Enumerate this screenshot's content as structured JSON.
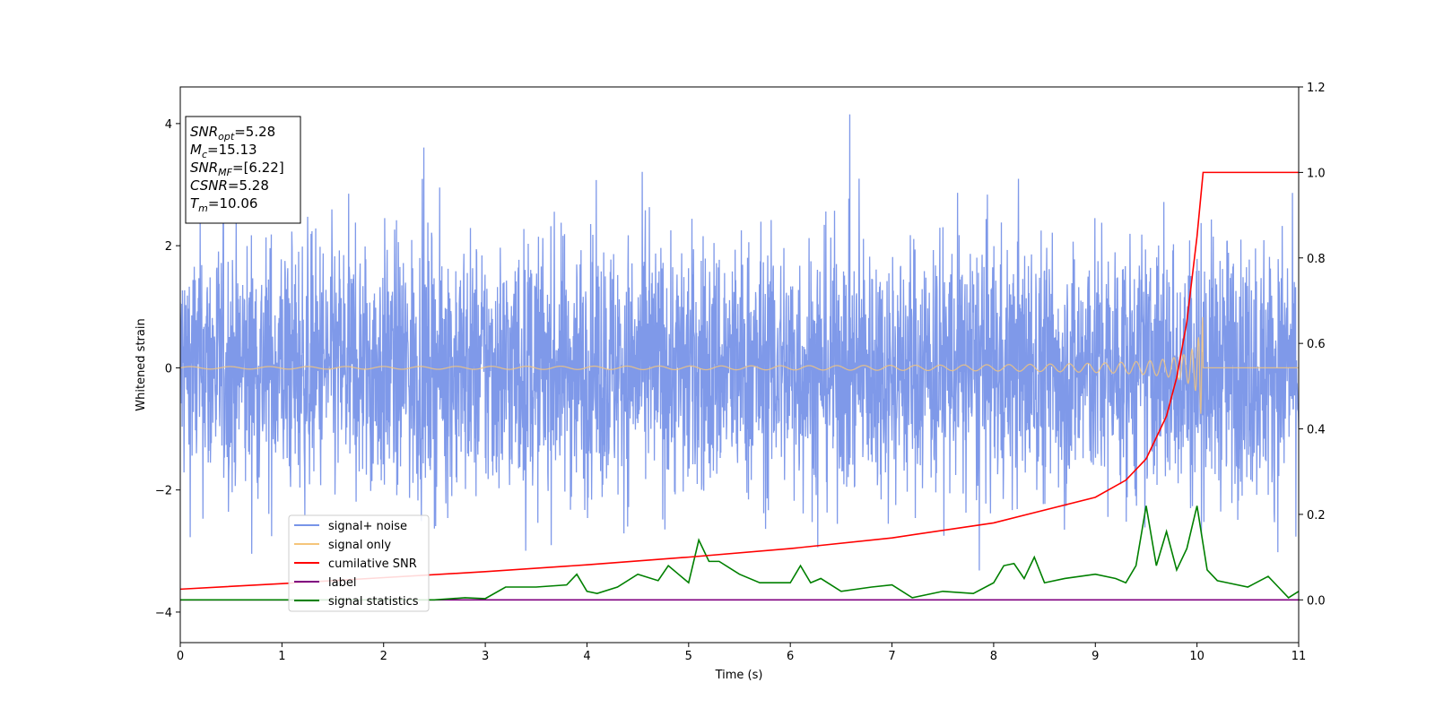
{
  "chart_data": {
    "type": "line",
    "xlabel": "Time (s)",
    "ylabel": "Whitened strain",
    "xlim": [
      0,
      11
    ],
    "ylim_left": [
      -4.5,
      4.6
    ],
    "ylim_right": [
      -0.1,
      1.2
    ],
    "x_ticks": [
      0,
      1,
      2,
      3,
      4,
      5,
      6,
      7,
      8,
      9,
      10,
      11
    ],
    "y_ticks_left": [
      -4,
      -2,
      0,
      2,
      4
    ],
    "y_ticks_right": [
      0.0,
      0.2,
      0.4,
      0.6,
      0.8,
      1.0,
      1.2
    ],
    "grid": false,
    "legend_position": "lower-left",
    "merger_time": 10.06,
    "series": [
      {
        "name": "signal+ noise",
        "axis": "left",
        "color": "#7894e8",
        "description_values": {
          "mean": 0,
          "std": 1.05,
          "min": -4.1,
          "max": 4.15
        }
      },
      {
        "name": "signal only",
        "axis": "left",
        "color": "#f5c57a",
        "description_values": {
          "start_amplitude": 0.02,
          "peak_amplitude": 1.0,
          "peak_time": 10.06
        }
      },
      {
        "name": "cumilative SNR",
        "axis": "right",
        "color": "#ff0000",
        "x": [
          0,
          1,
          2,
          3,
          4,
          5,
          6,
          7,
          8,
          9,
          9.3,
          9.5,
          9.7,
          9.8,
          9.9,
          10.0,
          10.06,
          11
        ],
        "y": [
          0.025,
          0.038,
          0.052,
          0.066,
          0.082,
          0.1,
          0.12,
          0.145,
          0.18,
          0.24,
          0.28,
          0.33,
          0.43,
          0.52,
          0.65,
          0.85,
          1.0,
          1.0
        ]
      },
      {
        "name": "label",
        "axis": "right",
        "color": "#800080",
        "x": [
          0,
          11
        ],
        "y": [
          0.0,
          0.0
        ]
      },
      {
        "name": "signal statistics",
        "axis": "right",
        "color": "#008000",
        "x": [
          0,
          0.5,
          1,
          1.5,
          2,
          2.5,
          2.8,
          3.0,
          3.2,
          3.5,
          3.8,
          3.9,
          4.0,
          4.1,
          4.3,
          4.5,
          4.7,
          4.8,
          4.9,
          5.0,
          5.1,
          5.2,
          5.3,
          5.5,
          5.7,
          6.0,
          6.1,
          6.2,
          6.3,
          6.5,
          6.8,
          7.0,
          7.2,
          7.5,
          7.8,
          8.0,
          8.1,
          8.2,
          8.3,
          8.4,
          8.5,
          8.7,
          9.0,
          9.2,
          9.3,
          9.4,
          9.5,
          9.6,
          9.7,
          9.8,
          9.9,
          10.0,
          10.1,
          10.2,
          10.3,
          10.5,
          10.7,
          10.8,
          10.9,
          11.0
        ],
        "y": [
          0.0,
          0.0,
          0.0,
          0.0,
          0.0,
          0.0,
          0.005,
          0.003,
          0.03,
          0.03,
          0.035,
          0.06,
          0.02,
          0.015,
          0.03,
          0.06,
          0.045,
          0.08,
          0.06,
          0.04,
          0.14,
          0.09,
          0.09,
          0.06,
          0.04,
          0.04,
          0.08,
          0.04,
          0.05,
          0.02,
          0.03,
          0.035,
          0.005,
          0.02,
          0.015,
          0.04,
          0.08,
          0.085,
          0.05,
          0.1,
          0.04,
          0.05,
          0.06,
          0.05,
          0.04,
          0.08,
          0.22,
          0.08,
          0.16,
          0.07,
          0.12,
          0.22,
          0.07,
          0.045,
          0.04,
          0.03,
          0.055,
          0.03,
          0.005,
          0.02
        ]
      }
    ],
    "annotation_box": {
      "lines": [
        {
          "main": "SNR",
          "sub": "opt",
          "value": "=5.28"
        },
        {
          "main": "M",
          "sub": "c",
          "value": "=15.13"
        },
        {
          "main": "SNR",
          "sub": "MF",
          "value": "=[6.22]"
        },
        {
          "main": "CSNR",
          "sub": "",
          "value": "=5.28"
        },
        {
          "main": "T",
          "sub": "m",
          "value": "=10.06"
        }
      ]
    }
  }
}
